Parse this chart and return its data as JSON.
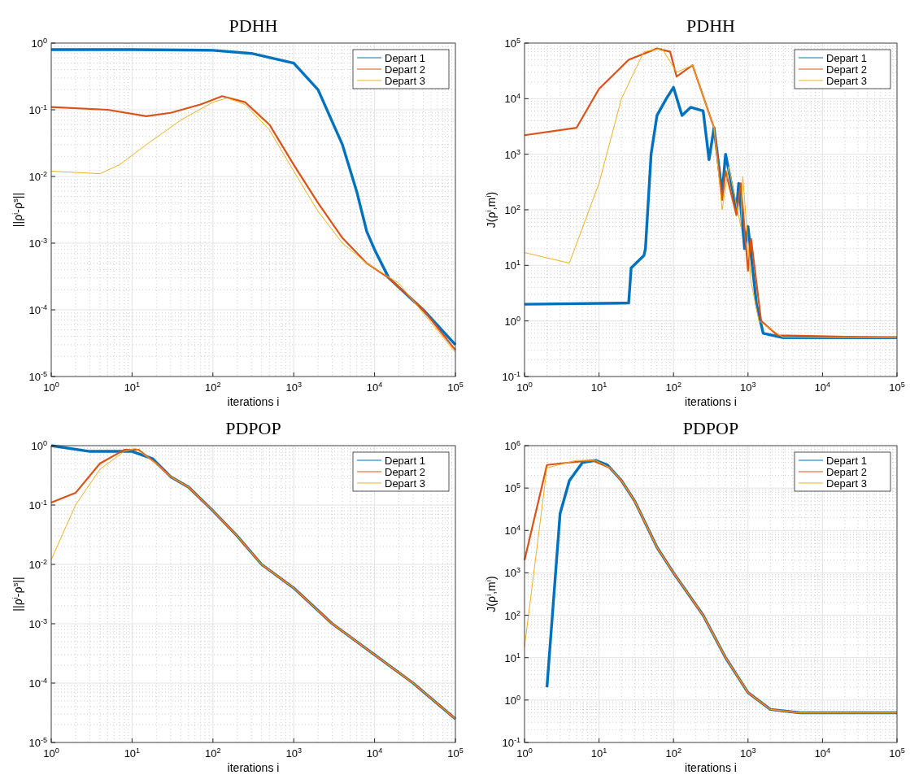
{
  "chart_data": [
    {
      "type": "line",
      "title": "PDHH",
      "xlabel": "iterations i",
      "ylabel": "||ρ$^{i}$-ρ$^{s}$||",
      "log": "xy",
      "grid": true,
      "legend": "top right",
      "xlim": [
        1,
        100000
      ],
      "ylim": [
        1e-05,
        1
      ],
      "xticks": [
        {
          "value": 1,
          "label": "10$^{0}$"
        },
        {
          "value": 10,
          "label": "10$^{1}$"
        },
        {
          "value": 100,
          "label": "10$^{2}$"
        },
        {
          "value": 1000,
          "label": "10$^{3}$"
        },
        {
          "value": 10000,
          "label": "10$^{4}$"
        },
        {
          "value": 100000,
          "label": "10$^{5}$"
        }
      ],
      "yticks": [
        {
          "value": 1e-05,
          "label": "10$^{-5}$"
        },
        {
          "value": 0.0001,
          "label": "10$^{-4}$"
        },
        {
          "value": 0.001,
          "label": "10$^{-3}$"
        },
        {
          "value": 0.01,
          "label": "10$^{-2}$"
        },
        {
          "value": 0.1,
          "label": "10$^{-1}$"
        },
        {
          "value": 1,
          "label": "10$^{0}$"
        }
      ],
      "series": [
        {
          "name": "Depart 1",
          "color": "#0072bd",
          "x": [
            1,
            10,
            100,
            300,
            1000,
            2000,
            4000,
            6000,
            8000,
            10000,
            15000,
            40000,
            100000
          ],
          "values": [
            0.8,
            0.8,
            0.78,
            0.7,
            0.5,
            0.2,
            0.03,
            0.006,
            0.0015,
            0.0008,
            0.0003,
            0.0001,
            3e-05
          ]
        },
        {
          "name": "Depart 2",
          "color": "#d95319",
          "x": [
            1,
            5,
            15,
            30,
            70,
            130,
            250,
            500,
            1000,
            2000,
            4000,
            8000,
            15000,
            40000,
            100000
          ],
          "values": [
            0.11,
            0.1,
            0.08,
            0.09,
            0.12,
            0.16,
            0.13,
            0.06,
            0.015,
            0.004,
            0.0012,
            0.0005,
            0.0003,
            0.0001,
            2.5e-05
          ]
        },
        {
          "name": "Depart 3",
          "color": "#edb120",
          "x": [
            1,
            4,
            7,
            15,
            40,
            100,
            150,
            250,
            500,
            1000,
            2000,
            4000,
            8000,
            20000,
            100000
          ],
          "values": [
            0.012,
            0.011,
            0.015,
            0.03,
            0.07,
            0.13,
            0.15,
            0.12,
            0.05,
            0.012,
            0.003,
            0.001,
            0.0005,
            0.00025,
            2.3e-05
          ]
        }
      ]
    },
    {
      "type": "line",
      "title": "PDHH",
      "xlabel": "iterations i",
      "ylabel": "J(ρ$^{i}$,m$^{i}$)",
      "log": "xy",
      "grid": true,
      "legend": "top right",
      "xlim": [
        1,
        100000
      ],
      "ylim": [
        0.1,
        100000
      ],
      "xticks": [
        {
          "value": 1,
          "label": "10$^{0}$"
        },
        {
          "value": 10,
          "label": "10$^{1}$"
        },
        {
          "value": 100,
          "label": "10$^{2}$"
        },
        {
          "value": 1000,
          "label": "10$^{3}$"
        },
        {
          "value": 10000,
          "label": "10$^{4}$"
        },
        {
          "value": 100000,
          "label": "10$^{5}$"
        }
      ],
      "yticks": [
        {
          "value": 0.1,
          "label": "10$^{-1}$"
        },
        {
          "value": 1,
          "label": "10$^{0}$"
        },
        {
          "value": 10,
          "label": "10$^{1}$"
        },
        {
          "value": 100,
          "label": "10$^{2}$"
        },
        {
          "value": 1000,
          "label": "10$^{3}$"
        },
        {
          "value": 10000,
          "label": "10$^{4}$"
        },
        {
          "value": 100000,
          "label": "10$^{5}$"
        }
      ],
      "series": [
        {
          "name": "Depart 1",
          "color": "#0072bd",
          "x": [
            1,
            25,
            27,
            40,
            42,
            50,
            60,
            80,
            100,
            130,
            170,
            250,
            300,
            350,
            450,
            500,
            700,
            750,
            900,
            1000,
            1300,
            1600,
            3000,
            100000
          ],
          "values": [
            2,
            2.1,
            9,
            15,
            20,
            1000,
            5000,
            10000,
            16000,
            5000,
            7000,
            6000,
            800,
            3000,
            200,
            1000,
            100,
            300,
            20,
            50,
            2,
            0.6,
            0.5,
            0.5
          ]
        },
        {
          "name": "Depart 2",
          "color": "#d95319",
          "x": [
            1,
            5,
            10,
            25,
            60,
            90,
            110,
            180,
            350,
            450,
            500,
            700,
            800,
            1000,
            1100,
            1500,
            2500,
            100000
          ],
          "values": [
            2200,
            3000,
            15000,
            50000,
            80000,
            70000,
            25000,
            40000,
            3000,
            150,
            500,
            80,
            300,
            8,
            30,
            1,
            0.55,
            0.5
          ]
        },
        {
          "name": "Depart 3",
          "color": "#edb120",
          "x": [
            1,
            4,
            10,
            20,
            40,
            70,
            110,
            180,
            350,
            450,
            550,
            800,
            850,
            1100,
            1400,
            3000,
            100000
          ],
          "values": [
            17,
            11,
            300,
            10000,
            70000,
            80000,
            30000,
            40000,
            3000,
            100,
            600,
            50,
            400,
            5,
            1,
            0.5,
            0.5
          ]
        }
      ]
    },
    {
      "type": "line",
      "title": "PDPOP",
      "xlabel": "iterations i",
      "ylabel": "||ρ$^{i}$-ρ$^{s}$||",
      "log": "xy",
      "grid": true,
      "legend": "top right",
      "xlim": [
        1,
        100000
      ],
      "ylim": [
        1e-05,
        1
      ],
      "xticks": [
        {
          "value": 1,
          "label": "10$^{0}$"
        },
        {
          "value": 10,
          "label": "10$^{1}$"
        },
        {
          "value": 100,
          "label": "10$^{2}$"
        },
        {
          "value": 1000,
          "label": "10$^{3}$"
        },
        {
          "value": 10000,
          "label": "10$^{4}$"
        },
        {
          "value": 100000,
          "label": "10$^{5}$"
        }
      ],
      "yticks": [
        {
          "value": 1e-05,
          "label": "10$^{-5}$"
        },
        {
          "value": 0.0001,
          "label": "10$^{-4}$"
        },
        {
          "value": 0.001,
          "label": "10$^{-3}$"
        },
        {
          "value": 0.01,
          "label": "10$^{-2}$"
        },
        {
          "value": 0.1,
          "label": "10$^{-1}$"
        },
        {
          "value": 1,
          "label": "10$^{0}$"
        }
      ],
      "series": [
        {
          "name": "Depart 1",
          "color": "#0072bd",
          "x": [
            1,
            3,
            7,
            10,
            18,
            30,
            50,
            100,
            200,
            400,
            1000,
            3000,
            10000,
            30000,
            100000
          ],
          "values": [
            1,
            0.8,
            0.8,
            0.8,
            0.6,
            0.3,
            0.2,
            0.08,
            0.03,
            0.01,
            0.004,
            0.001,
            0.0003,
            0.0001,
            2.5e-05
          ]
        },
        {
          "name": "Depart 2",
          "color": "#d95319",
          "x": [
            1,
            2,
            4,
            8,
            12,
            20,
            30,
            50,
            100,
            200,
            400,
            1000,
            3000,
            10000,
            30000,
            100000
          ],
          "values": [
            0.11,
            0.16,
            0.5,
            0.85,
            0.85,
            0.5,
            0.3,
            0.2,
            0.08,
            0.03,
            0.01,
            0.004,
            0.001,
            0.0003,
            0.0001,
            2.5e-05
          ]
        },
        {
          "name": "Depart 3",
          "color": "#edb120",
          "x": [
            1,
            2,
            4,
            8,
            11,
            20,
            30,
            50,
            100,
            200,
            400,
            1000,
            3000,
            10000,
            30000,
            100000
          ],
          "values": [
            0.012,
            0.1,
            0.4,
            0.8,
            0.9,
            0.5,
            0.3,
            0.2,
            0.08,
            0.03,
            0.01,
            0.004,
            0.001,
            0.0003,
            0.0001,
            2.5e-05
          ]
        }
      ]
    },
    {
      "type": "line",
      "title": "PDPOP",
      "xlabel": "iterations i",
      "ylabel": "J(ρ$^{i}$,m$^{i}$)",
      "log": "xy",
      "grid": true,
      "legend": "top right",
      "xlim": [
        1,
        100000
      ],
      "ylim": [
        0.1,
        1000000
      ],
      "xticks": [
        {
          "value": 1,
          "label": "10$^{0}$"
        },
        {
          "value": 10,
          "label": "10$^{1}$"
        },
        {
          "value": 100,
          "label": "10$^{2}$"
        },
        {
          "value": 1000,
          "label": "10$^{3}$"
        },
        {
          "value": 10000,
          "label": "10$^{4}$"
        },
        {
          "value": 100000,
          "label": "10$^{5}$"
        }
      ],
      "yticks": [
        {
          "value": 0.1,
          "label": "10$^{-1}$"
        },
        {
          "value": 1,
          "label": "10$^{0}$"
        },
        {
          "value": 10,
          "label": "10$^{1}$"
        },
        {
          "value": 100,
          "label": "10$^{2}$"
        },
        {
          "value": 1000,
          "label": "10$^{3}$"
        },
        {
          "value": 10000,
          "label": "10$^{4}$"
        },
        {
          "value": 100000,
          "label": "10$^{5}$"
        },
        {
          "value": 1000000,
          "label": "10$^{6}$"
        }
      ],
      "series": [
        {
          "name": "Depart 1",
          "color": "#0072bd",
          "x": [
            2,
            3,
            4,
            6,
            9,
            13,
            20,
            30,
            60,
            100,
            250,
            500,
            1000,
            2000,
            5000,
            100000
          ],
          "values": [
            2,
            25000,
            150000,
            400000,
            450000,
            350000,
            150000,
            50000,
            4000,
            1000,
            100,
            10,
            1.5,
            0.6,
            0.5,
            0.5
          ]
        },
        {
          "name": "Depart 2",
          "color": "#d95319",
          "x": [
            1,
            2,
            4,
            8,
            14,
            20,
            30,
            60,
            100,
            250,
            500,
            1000,
            2000,
            5000,
            100000
          ],
          "values": [
            2000,
            350000,
            400000,
            450000,
            300000,
            150000,
            50000,
            4000,
            1000,
            100,
            10,
            1.5,
            0.6,
            0.5,
            0.5
          ]
        },
        {
          "name": "Depart 3",
          "color": "#edb120",
          "x": [
            1,
            2,
            5,
            9,
            14,
            20,
            30,
            60,
            100,
            250,
            500,
            1000,
            2000,
            5000,
            100000
          ],
          "values": [
            18,
            300000,
            450000,
            450000,
            300000,
            150000,
            50000,
            4000,
            1000,
            100,
            10,
            1.5,
            0.6,
            0.5,
            0.5
          ]
        }
      ]
    }
  ]
}
